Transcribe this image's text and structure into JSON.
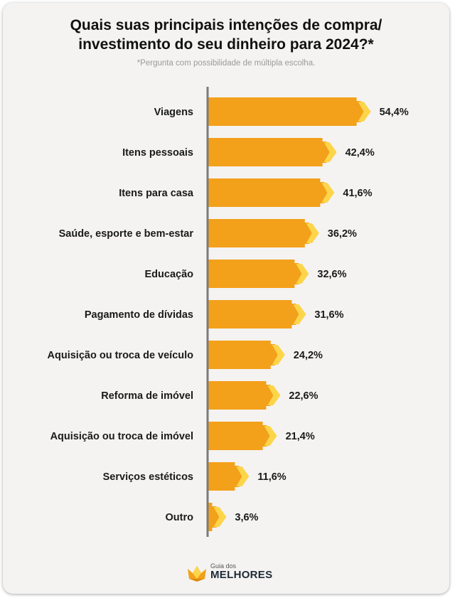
{
  "title_line1": "Quais suas principais intenções de compra/",
  "title_line2": "investimento do seu dinheiro para 2024?*",
  "subtitle": "*Pergunta com possibilidade de múltipla escolha.",
  "brand": {
    "small": "Guia dos",
    "big": "MELHORES"
  },
  "colors": {
    "bar": "#f3a01a",
    "chevron": "#fcd54a",
    "axis": "#7a7a7a"
  },
  "chart_data": {
    "type": "bar",
    "orientation": "horizontal",
    "title": "Quais suas principais intenções de compra/ investimento do seu dinheiro para 2024?*",
    "categories": [
      "Viagens",
      "Itens pessoais",
      "Itens para casa",
      "Saúde, esporte e bem-estar",
      "Educação",
      "Pagamento de dívidas",
      "Aquisição ou troca de veículo",
      "Reforma de imóvel",
      "Aquisição ou troca de imóvel",
      "Serviços estéticos",
      "Outro"
    ],
    "values": [
      54.4,
      42.4,
      41.6,
      36.2,
      32.6,
      31.6,
      24.2,
      22.6,
      21.4,
      11.6,
      3.6
    ],
    "value_labels": [
      "54,4%",
      "42,4%",
      "41,6%",
      "36,2%",
      "32,6%",
      "31,6%",
      "24,2%",
      "22,6%",
      "21,4%",
      "11,6%",
      "3,6%"
    ],
    "unit": "%",
    "grid": false
  }
}
